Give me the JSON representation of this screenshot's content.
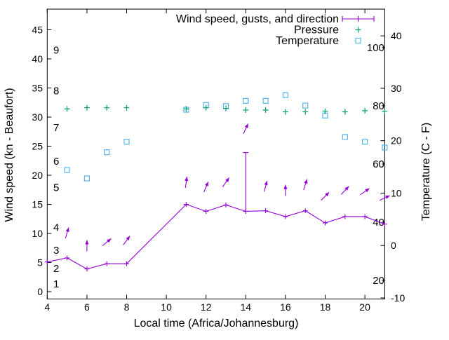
{
  "chart_data": {
    "type": "line",
    "title": "",
    "xlabel": "Local time (Africa/Johannesburg)",
    "ylabel_left": "Wind speed (kn - Beaufort)",
    "ylabel_right": "Temperature (C - F)",
    "x_range": [
      4,
      21
    ],
    "y_left_range_kn": [
      -1.26,
      48.55
    ],
    "y_right_range_c": [
      -10.2,
      45.1
    ],
    "x_ticks": [
      4,
      6,
      8,
      10,
      12,
      14,
      16,
      18,
      20
    ],
    "y_left_ticks_kn": [
      0,
      5,
      10,
      15,
      20,
      25,
      30,
      35,
      40,
      45
    ],
    "y_right_ticks_c": [
      -10,
      0,
      10,
      20,
      30,
      40
    ],
    "grid": false,
    "legend_position": "top-right-inside",
    "colors": {
      "wind": "#9400D3",
      "pressure": "#009E73",
      "temperature": "#56B4E9",
      "text": "#000000",
      "border": "#000000"
    },
    "legend": [
      {
        "label": "Wind speed, gusts, and direction",
        "color": "#9400D3",
        "marker": "errorbar-line"
      },
      {
        "label": "Pressure",
        "color": "#009E73",
        "marker": "plus"
      },
      {
        "label": "Temperature",
        "color": "#56B4E9",
        "marker": "open-square"
      }
    ],
    "beaufort_labels": [
      {
        "label": "1",
        "kn": 1.3
      },
      {
        "label": "2",
        "kn": 4.0
      },
      {
        "label": "3",
        "kn": 7.1
      },
      {
        "label": "4",
        "kn": 11.0
      },
      {
        "label": "5",
        "kn": 17.9
      },
      {
        "label": "6",
        "kn": 22.4
      },
      {
        "label": "7",
        "kn": 28.2
      },
      {
        "label": "8",
        "kn": 34.5
      },
      {
        "label": "9",
        "kn": 41.5
      }
    ],
    "fahrenheit_labels": [
      {
        "label": "20",
        "f": 20
      },
      {
        "label": "40",
        "f": 40
      },
      {
        "label": "60",
        "f": 60
      },
      {
        "label": "80",
        "f": 80
      },
      {
        "label": "100",
        "f": 100
      }
    ],
    "series": {
      "wind_speed_kn": {
        "x": [
          4,
          5,
          6,
          7,
          8,
          11,
          12,
          13,
          14,
          15,
          16,
          17,
          18,
          19,
          20,
          21
        ],
        "y": [
          5.1,
          5.8,
          3.9,
          4.8,
          4.8,
          15.0,
          13.8,
          14.9,
          13.8,
          13.9,
          12.9,
          13.9,
          11.8,
          12.9,
          12.9,
          11.6
        ]
      },
      "gusts_kn": [
        {
          "x": 14,
          "from": 13.8,
          "to": 23.9
        }
      ],
      "wind_direction_arrows": [
        {
          "t": 5,
          "y_kn": 10.1,
          "angle_deg": 17
        },
        {
          "t": 6,
          "y_kn": 7.9,
          "angle_deg": 0
        },
        {
          "t": 7,
          "y_kn": 8.5,
          "angle_deg": 50
        },
        {
          "t": 8,
          "y_kn": 8.8,
          "angle_deg": 36
        },
        {
          "t": 11,
          "y_kn": 18.8,
          "angle_deg": 8
        },
        {
          "t": 12,
          "y_kn": 18.0,
          "angle_deg": 23
        },
        {
          "t": 13,
          "y_kn": 18.8,
          "angle_deg": 35
        },
        {
          "t": 14,
          "y_kn": 28.0,
          "angle_deg": 25
        },
        {
          "t": 15,
          "y_kn": 18.1,
          "angle_deg": 15
        },
        {
          "t": 16,
          "y_kn": 17.4,
          "angle_deg": 0
        },
        {
          "t": 17,
          "y_kn": 18.4,
          "angle_deg": 18
        },
        {
          "t": 18,
          "y_kn": 16.4,
          "angle_deg": 45
        },
        {
          "t": 19,
          "y_kn": 17.4,
          "angle_deg": 43
        },
        {
          "t": 20,
          "y_kn": 17.2,
          "angle_deg": 55
        },
        {
          "t": 21,
          "y_kn": 16.1,
          "angle_deg": 65
        }
      ],
      "pressure_marks_left_axis_scale": {
        "x": [
          5,
          6,
          7,
          8,
          11,
          12,
          13,
          14,
          15,
          16,
          17,
          18,
          19,
          20,
          21
        ],
        "y_kn": [
          31.4,
          31.6,
          31.6,
          31.6,
          31.4,
          31.6,
          31.5,
          31.2,
          31.2,
          30.9,
          30.9,
          31.0,
          30.9,
          31.1,
          31.0
        ]
      },
      "temperature_c": {
        "x": [
          5,
          6,
          7,
          8,
          11,
          12,
          13,
          14,
          15,
          16,
          17,
          18,
          19,
          20,
          21
        ],
        "y": [
          14.4,
          12.8,
          17.8,
          19.8,
          25.9,
          26.8,
          26.6,
          27.6,
          27.6,
          28.7,
          26.7,
          24.8,
          20.7,
          19.8,
          18.7
        ]
      }
    }
  }
}
